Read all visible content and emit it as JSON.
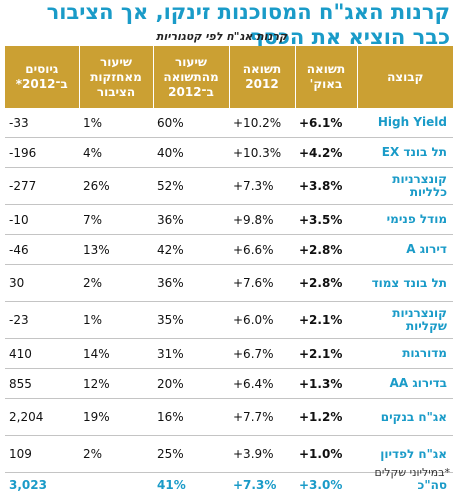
{
  "title": "קרנות האג\"ח המסוכנות זינקו, אך הציבור כבר הוציא את הכסף",
  "subtitle": "קרנות אג\"ח לפי קטגוריות",
  "footnote": "*במיליוני שקלים",
  "chart_data": {
    "type": "table",
    "columns": [
      "קבוצה",
      "תשואה באוק'",
      "תשואה 2012",
      "שיעור מהתשואה ב־2012",
      "שיעור מאחזקות הציבור",
      "גיוסים ב־2012*"
    ],
    "rows": [
      {
        "category": "High Yield",
        "oct": "+6.1%",
        "y2012": "+10.2%",
        "share_return": "60%",
        "share_holdings": "1%",
        "raised": "-33"
      },
      {
        "category": "תל בונד EX",
        "oct": "+4.2%",
        "y2012": "+10.3%",
        "share_return": "40%",
        "share_holdings": "4%",
        "raised": "-196"
      },
      {
        "category": "קונצרניות כלליות",
        "oct": "+3.8%",
        "y2012": "+7.3%",
        "share_return": "52%",
        "share_holdings": "26%",
        "raised": "-277"
      },
      {
        "category": "מודל פנימי",
        "oct": "+3.5%",
        "y2012": "+9.8%",
        "share_return": "36%",
        "share_holdings": "7%",
        "raised": "-10"
      },
      {
        "category": "דירוג A",
        "oct": "+2.8%",
        "y2012": "+6.6%",
        "share_return": "42%",
        "share_holdings": "13%",
        "raised": "-46"
      },
      {
        "category": "תל בונד צמוד",
        "oct": "+2.8%",
        "y2012": "+7.6%",
        "share_return": "36%",
        "share_holdings": "2%",
        "raised": "30"
      },
      {
        "category": "קונצרניות שקליות",
        "oct": "+2.1%",
        "y2012": "+6.0%",
        "share_return": "35%",
        "share_holdings": "1%",
        "raised": "-23"
      },
      {
        "category": "מדורגות",
        "oct": "+2.1%",
        "y2012": "+6.7%",
        "share_return": "31%",
        "share_holdings": "14%",
        "raised": "410"
      },
      {
        "category": "בדירוג AA",
        "oct": "+1.3%",
        "y2012": "+6.4%",
        "share_return": "20%",
        "share_holdings": "12%",
        "raised": "855"
      },
      {
        "category": "אג\"ח בנקים",
        "oct": "+1.2%",
        "y2012": "+7.7%",
        "share_return": "16%",
        "share_holdings": "19%",
        "raised": "2,204"
      },
      {
        "category": "אג\"ח לפדיון",
        "oct": "+1.0%",
        "y2012": "+3.9%",
        "share_return": "25%",
        "share_holdings": "2%",
        "raised": "109"
      }
    ],
    "total": {
      "category": "סה\"כ",
      "oct": "+3.0%",
      "y2012": "+7.3%",
      "share_return": "41%",
      "share_holdings": "",
      "raised": "3,023"
    }
  },
  "colors": {
    "accent": "#1a9bc8",
    "header_bg": "#cba033"
  }
}
